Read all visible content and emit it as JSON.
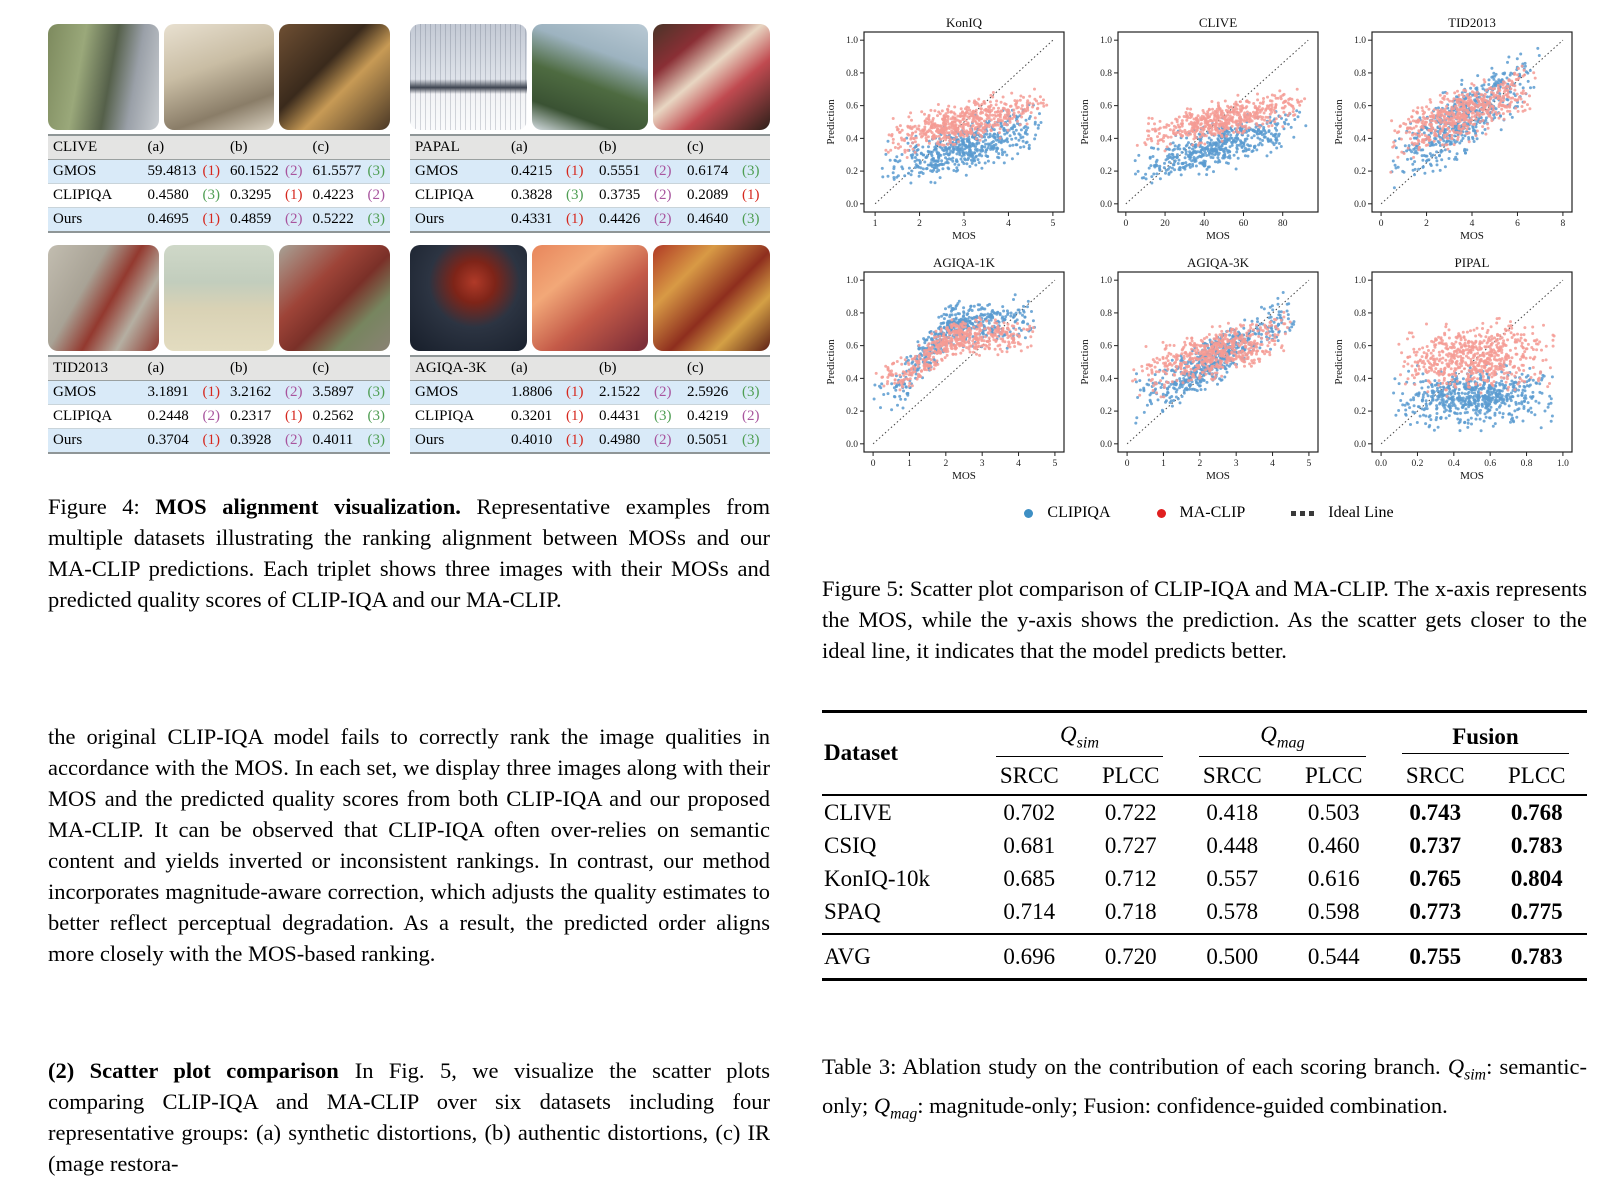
{
  "figure4": {
    "caption": {
      "label": "Figure 4: ",
      "bold": "MOS alignment visualization.",
      "rest": " Representative examples from multiple datasets illustrating the ranking alignment between MOSs and our MA-CLIP predictions. Each triplet shows three images with their MOSs and predicted quality scores of CLIP-IQA and our MA-CLIP."
    },
    "rank_colors": {
      "red": "#d6281e",
      "purple": "#a8559e",
      "green": "#4f9e53"
    },
    "blocks": [
      {
        "dataset": "CLIVE",
        "cols": [
          "(a)",
          "(b)",
          "(c)"
        ],
        "images": [
          {
            "name": "roadside-grass-photo",
            "cls": "img-clive-a"
          },
          {
            "name": "indoor-people-photo",
            "cls": "img-clive-b"
          },
          {
            "name": "store-interior-photo",
            "cls": "img-clive-c"
          }
        ],
        "rows": [
          {
            "label": "GMOS",
            "cells": [
              [
                "59.4813",
                "(1)",
                "red"
              ],
              [
                "60.1522",
                "(2)",
                "purple"
              ],
              [
                "61.5577",
                "(3)",
                "green"
              ]
            ]
          },
          {
            "label": "CLIPIQA",
            "cells": [
              [
                "0.4580",
                "(3)",
                "green"
              ],
              [
                "0.3295",
                "(1)",
                "red"
              ],
              [
                "0.4223",
                "(2)",
                "purple"
              ]
            ]
          },
          {
            "label": "Ours",
            "cells": [
              [
                "0.4695",
                "(1)",
                "red"
              ],
              [
                "0.4859",
                "(2)",
                "purple"
              ],
              [
                "0.5222",
                "(3)",
                "green"
              ]
            ]
          }
        ]
      },
      {
        "dataset": "PAPAL",
        "cols": [
          "(a)",
          "(b)",
          "(c)"
        ],
        "images": [
          {
            "name": "grid-texture-photo",
            "cls": "img-papal-a"
          },
          {
            "name": "pine-tree-photo",
            "cls": "img-papal-b"
          },
          {
            "name": "poster-wall-photo",
            "cls": "img-papal-c"
          }
        ],
        "rows": [
          {
            "label": "GMOS",
            "cells": [
              [
                "0.4215",
                "(1)",
                "red"
              ],
              [
                "0.5551",
                "(2)",
                "purple"
              ],
              [
                "0.6174",
                "(3)",
                "green"
              ]
            ]
          },
          {
            "label": "CLIPIQA",
            "cells": [
              [
                "0.3828",
                "(3)",
                "green"
              ],
              [
                "0.3735",
                "(2)",
                "purple"
              ],
              [
                "0.2089",
                "(1)",
                "red"
              ]
            ]
          },
          {
            "label": "Ours",
            "cells": [
              [
                "0.4331",
                "(1)",
                "red"
              ],
              [
                "0.4426",
                "(2)",
                "purple"
              ],
              [
                "0.4640",
                "(3)",
                "green"
              ]
            ]
          }
        ]
      },
      {
        "dataset": "TID2013",
        "cols": [
          "(a)",
          "(b)",
          "(c)"
        ],
        "images": [
          {
            "name": "stone-house-photo",
            "cls": "img-tid-a"
          },
          {
            "name": "beach-couple-photo",
            "cls": "img-tid-b"
          },
          {
            "name": "red-barn-photo",
            "cls": "img-tid-c"
          }
        ],
        "rows": [
          {
            "label": "GMOS",
            "cells": [
              [
                "3.1891",
                "(1)",
                "red"
              ],
              [
                "3.2162",
                "(2)",
                "purple"
              ],
              [
                "3.5897",
                "(3)",
                "green"
              ]
            ]
          },
          {
            "label": "CLIPIQA",
            "cells": [
              [
                "0.2448",
                "(2)",
                "purple"
              ],
              [
                "0.2317",
                "(1)",
                "red"
              ],
              [
                "0.2562",
                "(3)",
                "green"
              ]
            ]
          },
          {
            "label": "Ours",
            "cells": [
              [
                "0.3704",
                "(1)",
                "red"
              ],
              [
                "0.3928",
                "(2)",
                "purple"
              ],
              [
                "0.4011",
                "(3)",
                "green"
              ]
            ]
          }
        ]
      },
      {
        "dataset": "AGIQA-3K",
        "cols": [
          "(a)",
          "(b)",
          "(c)"
        ],
        "images": [
          {
            "name": "gnome-figure-photo",
            "cls": "img-agiqa-a"
          },
          {
            "name": "mushroom-scene-photo",
            "cls": "img-agiqa-b"
          },
          {
            "name": "baroque-facade-photo",
            "cls": "img-agiqa-c"
          }
        ],
        "rows": [
          {
            "label": "GMOS",
            "cells": [
              [
                "1.8806",
                "(1)",
                "red"
              ],
              [
                "2.1522",
                "(2)",
                "purple"
              ],
              [
                "2.5926",
                "(3)",
                "green"
              ]
            ]
          },
          {
            "label": "CLIPIQA",
            "cells": [
              [
                "0.3201",
                "(1)",
                "red"
              ],
              [
                "0.4431",
                "(3)",
                "green"
              ],
              [
                "0.4219",
                "(2)",
                "purple"
              ]
            ]
          },
          {
            "label": "Ours",
            "cells": [
              [
                "0.4010",
                "(1)",
                "red"
              ],
              [
                "0.4980",
                "(2)",
                "purple"
              ],
              [
                "0.5051",
                "(3)",
                "green"
              ]
            ]
          }
        ]
      }
    ]
  },
  "body": {
    "para1": "the original CLIP-IQA model fails to correctly rank the image qualities in accordance with the MOS. In each set, we display three images along with their MOS and the predicted quality scores from both CLIP-IQA and our proposed MA-CLIP. It can be observed that CLIP-IQA often over-relies on semantic content and yields inverted or inconsistent rankings. In contrast, our method incorporates magnitude-aware correction, which adjusts the quality estimates to better reflect perceptual degradation. As a result, the predicted order aligns more closely with the MOS-based ranking.",
    "para2_lead": "(2) Scatter plot comparison",
    "para2_rest": "In Fig. 5, we visualize the scatter plots comparing CLIP-IQA and MA-CLIP over six datasets including four representative groups: (a) synthetic distortions, (b) authentic distortions, (c) IR (mage restora-"
  },
  "figure5": {
    "legend": [
      {
        "label": "CLIPIQA",
        "color": "#3e8fc4",
        "marker": "dot"
      },
      {
        "label": "MA-CLIP",
        "color": "#e01f1f",
        "marker": "dot"
      },
      {
        "label": "Ideal Line",
        "color": "#3a3a3a",
        "marker": "dashes"
      }
    ],
    "caption": "Figure 5: Scatter plot comparison of CLIP-IQA and MA-CLIP. The x-axis represents the MOS, while the y-axis shows the prediction. As the scatter gets closer to the ideal line, it indicates that the model predicts better."
  },
  "chart_data": [
    {
      "type": "scatter",
      "title": "KonIQ",
      "xlabel": "MOS",
      "ylabel": "Prediction",
      "xlim": [
        0.75,
        5.25
      ],
      "ylim": [
        -0.05,
        1.05
      ],
      "xticks": [
        1,
        2,
        3,
        4,
        5
      ],
      "xtick_labels": [
        "1",
        "2",
        "3",
        "4",
        "5"
      ],
      "yticks": [
        "0.0",
        "0.2",
        "0.4",
        "0.6",
        "0.8",
        "1.0"
      ],
      "ideal": [
        1,
        5
      ],
      "legend_position": "below-shared",
      "grid": false,
      "series": [
        {
          "name": "CLIPIQA",
          "color": "#5b9bd0",
          "n": 550,
          "xmin": 1.1,
          "xmax": 4.95,
          "ramp": [
            1.1,
            4.95
          ],
          "y0": 0.2,
          "y1": 0.5,
          "spread": 0.065
        },
        {
          "name": "MA-CLIP",
          "color": "#f59b94",
          "n": 550,
          "xmin": 1.1,
          "xmax": 4.95,
          "ramp": [
            1.1,
            4.95
          ],
          "y0": 0.38,
          "y1": 0.62,
          "spread": 0.055
        }
      ]
    },
    {
      "type": "scatter",
      "title": "CLIVE",
      "xlabel": "MOS",
      "ylabel": "Prediction",
      "xlim": [
        -4,
        98
      ],
      "ylim": [
        -0.05,
        1.05
      ],
      "xticks": [
        0,
        20,
        40,
        60,
        80
      ],
      "xtick_labels": [
        "0",
        "20",
        "40",
        "60",
        "80"
      ],
      "yticks": [
        "0.0",
        "0.2",
        "0.4",
        "0.6",
        "0.8",
        "1.0"
      ],
      "ideal": [
        0,
        93
      ],
      "legend_position": "below-shared",
      "grid": false,
      "series": [
        {
          "name": "CLIPIQA",
          "color": "#5b9bd0",
          "n": 520,
          "xmin": 3,
          "xmax": 93,
          "ramp": [
            3,
            93
          ],
          "y0": 0.2,
          "y1": 0.52,
          "spread": 0.06
        },
        {
          "name": "MA-CLIP",
          "color": "#f59b94",
          "n": 520,
          "xmin": 3,
          "xmax": 93,
          "ramp": [
            3,
            93
          ],
          "y0": 0.39,
          "y1": 0.62,
          "spread": 0.05
        }
      ]
    },
    {
      "type": "scatter",
      "title": "TID2013",
      "xlabel": "MOS",
      "ylabel": "Prediction",
      "xlim": [
        -0.4,
        8.4
      ],
      "ylim": [
        -0.05,
        1.05
      ],
      "xticks": [
        0,
        2,
        4,
        6,
        8
      ],
      "xtick_labels": [
        "0",
        "2",
        "4",
        "6",
        "8"
      ],
      "yticks": [
        "0.0",
        "0.2",
        "0.4",
        "0.6",
        "0.8",
        "1.0"
      ],
      "ideal": [
        0,
        8
      ],
      "legend_position": "below-shared",
      "grid": false,
      "series": [
        {
          "name": "CLIPIQA",
          "color": "#5b9bd0",
          "n": 560,
          "xmin": 0.2,
          "xmax": 7.0,
          "ramp": [
            0.2,
            7.0
          ],
          "y0": 0.22,
          "y1": 0.82,
          "spread": 0.09
        },
        {
          "name": "MA-CLIP",
          "color": "#f59b94",
          "n": 560,
          "xmin": 0.2,
          "xmax": 7.0,
          "ramp": [
            0.2,
            7.0
          ],
          "y0": 0.37,
          "y1": 0.74,
          "spread": 0.07
        }
      ]
    },
    {
      "type": "scatter",
      "title": "AGIQA-1K",
      "xlabel": "MOS",
      "ylabel": "Prediction",
      "xlim": [
        -0.25,
        5.25
      ],
      "ylim": [
        -0.05,
        1.05
      ],
      "xticks": [
        0,
        1,
        2,
        3,
        4,
        5
      ],
      "xtick_labels": [
        "0",
        "1",
        "2",
        "3",
        "4",
        "5"
      ],
      "yticks": [
        "0.0",
        "0.2",
        "0.4",
        "0.6",
        "0.8",
        "1.0"
      ],
      "ideal": [
        0,
        5
      ],
      "legend_position": "below-shared",
      "grid": false,
      "series": [
        {
          "name": "CLIPIQA",
          "color": "#5b9bd0",
          "n": 520,
          "xmin": 0,
          "xmax": 4.6,
          "ramp": [
            0.7,
            2.1
          ],
          "y0": 0.32,
          "y1": 0.74,
          "spread": 0.06
        },
        {
          "name": "MA-CLIP",
          "color": "#f59b94",
          "n": 520,
          "xmin": 0,
          "xmax": 4.6,
          "ramp": [
            0.9,
            2.2
          ],
          "y0": 0.42,
          "y1": 0.66,
          "spread": 0.05
        }
      ]
    },
    {
      "type": "scatter",
      "title": "AGIQA-3K",
      "xlabel": "MOS",
      "ylabel": "Prediction",
      "xlim": [
        -0.25,
        5.25
      ],
      "ylim": [
        -0.05,
        1.05
      ],
      "xticks": [
        0,
        1,
        2,
        3,
        4,
        5
      ],
      "xtick_labels": [
        "0",
        "1",
        "2",
        "3",
        "4",
        "5"
      ],
      "yticks": [
        "0.0",
        "0.2",
        "0.4",
        "0.6",
        "0.8",
        "1.0"
      ],
      "ideal": [
        0,
        5
      ],
      "legend_position": "below-shared",
      "grid": false,
      "series": [
        {
          "name": "CLIPIQA",
          "color": "#5b9bd0",
          "n": 560,
          "xmin": 0.05,
          "xmax": 4.7,
          "ramp": [
            0.3,
            4.5
          ],
          "y0": 0.25,
          "y1": 0.79,
          "spread": 0.065
        },
        {
          "name": "MA-CLIP",
          "color": "#f59b94",
          "n": 560,
          "xmin": 0.05,
          "xmax": 4.7,
          "ramp": [
            0.2,
            4.4
          ],
          "y0": 0.41,
          "y1": 0.68,
          "spread": 0.065
        }
      ]
    },
    {
      "type": "scatter",
      "title": "PIPAL",
      "xlabel": "MOS",
      "ylabel": "Prediction",
      "xlim": [
        -0.05,
        1.05
      ],
      "ylim": [
        -0.05,
        1.05
      ],
      "xticks": [
        0,
        0.2,
        0.4,
        0.6,
        0.8,
        1.0
      ],
      "xtick_labels": [
        "0.0",
        "0.2",
        "0.4",
        "0.6",
        "0.8",
        "1.0"
      ],
      "yticks": [
        "0.0",
        "0.2",
        "0.4",
        "0.6",
        "0.8",
        "1.0"
      ],
      "ideal": [
        0,
        1
      ],
      "legend_position": "below-shared",
      "grid": false,
      "series": [
        {
          "name": "CLIPIQA",
          "color": "#5b9bd0",
          "n": 620,
          "xmin": 0.05,
          "xmax": 0.97,
          "ramp": [
            0.05,
            0.97
          ],
          "y0": 0.26,
          "y1": 0.3,
          "spread": 0.08
        },
        {
          "name": "MA-CLIP",
          "color": "#f59b94",
          "n": 620,
          "xmin": 0.05,
          "xmax": 0.97,
          "ramp": [
            0.05,
            0.97
          ],
          "y0": 0.5,
          "y1": 0.55,
          "spread": 0.09
        }
      ]
    }
  ],
  "table3": {
    "col_dataset": "Dataset",
    "groups": [
      {
        "label": "Q",
        "sub": "sim",
        "math": true
      },
      {
        "label": "Q",
        "sub": "mag",
        "math": true
      },
      {
        "label": "Fusion",
        "sub": "",
        "math": false
      }
    ],
    "subheaders": [
      "SRCC",
      "PLCC",
      "SRCC",
      "PLCC",
      "SRCC",
      "PLCC"
    ],
    "bold_cols": [
      4,
      5
    ],
    "rows": [
      {
        "dataset": "CLIVE",
        "values": [
          "0.702",
          "0.722",
          "0.418",
          "0.503",
          "0.743",
          "0.768"
        ]
      },
      {
        "dataset": "CSIQ",
        "values": [
          "0.681",
          "0.727",
          "0.448",
          "0.460",
          "0.737",
          "0.783"
        ]
      },
      {
        "dataset": "KonIQ-10k",
        "values": [
          "0.685",
          "0.712",
          "0.557",
          "0.616",
          "0.765",
          "0.804"
        ]
      },
      {
        "dataset": "SPAQ",
        "values": [
          "0.714",
          "0.718",
          "0.578",
          "0.598",
          "0.773",
          "0.775"
        ]
      }
    ],
    "avg_row": {
      "dataset": "AVG",
      "values": [
        "0.696",
        "0.720",
        "0.500",
        "0.544",
        "0.755",
        "0.783"
      ]
    },
    "caption_segments": [
      {
        "t": "Table 3: Ablation study on the contribution of each scoring branch. "
      },
      {
        "t": "Q",
        "math": true
      },
      {
        "t": "sim",
        "math": true,
        "sub": true
      },
      {
        "t": ": semantic-only; "
      },
      {
        "t": "Q",
        "math": true
      },
      {
        "t": "mag",
        "math": true,
        "sub": true
      },
      {
        "t": ": magnitude-only; Fusion: confidence-guided combination."
      }
    ]
  }
}
